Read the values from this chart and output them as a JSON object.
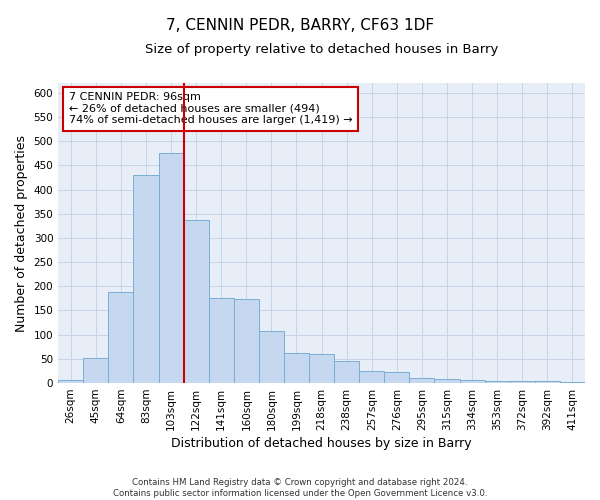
{
  "title": "7, CENNIN PEDR, BARRY, CF63 1DF",
  "subtitle": "Size of property relative to detached houses in Barry",
  "xlabel": "Distribution of detached houses by size in Barry",
  "ylabel": "Number of detached properties",
  "footer_line1": "Contains HM Land Registry data © Crown copyright and database right 2024.",
  "footer_line2": "Contains public sector information licensed under the Open Government Licence v3.0.",
  "categories": [
    "26sqm",
    "45sqm",
    "64sqm",
    "83sqm",
    "103sqm",
    "122sqm",
    "141sqm",
    "160sqm",
    "180sqm",
    "199sqm",
    "218sqm",
    "238sqm",
    "257sqm",
    "276sqm",
    "295sqm",
    "315sqm",
    "334sqm",
    "353sqm",
    "372sqm",
    "392sqm",
    "411sqm"
  ],
  "values": [
    6,
    51,
    188,
    430,
    476,
    338,
    175,
    174,
    107,
    62,
    60,
    45,
    24,
    22,
    11,
    9,
    7,
    4,
    5,
    4,
    3
  ],
  "bar_color": "#c5d8ef",
  "bar_edge_color": "#7badd4",
  "vline_x_index": 4,
  "vline_color": "#cc0000",
  "annotation_text": "7 CENNIN PEDR: 96sqm\n← 26% of detached houses are smaller (494)\n74% of semi-detached houses are larger (1,419) →",
  "annotation_bbox_color": "#cc0000",
  "ylim": [
    0,
    620
  ],
  "yticks": [
    0,
    50,
    100,
    150,
    200,
    250,
    300,
    350,
    400,
    450,
    500,
    550,
    600
  ],
  "grid_color": "#c8d4e8",
  "bg_color": "#e8eef8",
  "title_fontsize": 11,
  "subtitle_fontsize": 9.5,
  "axis_label_fontsize": 9,
  "tick_fontsize": 7.5,
  "ann_fontsize": 8
}
